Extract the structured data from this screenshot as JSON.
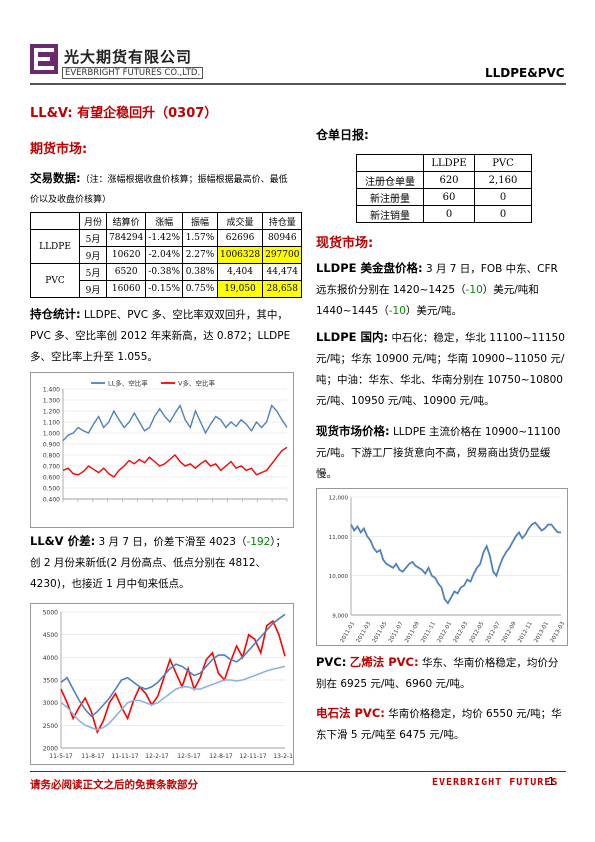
{
  "header": {
    "company_cn": "光大期货有限公司",
    "company_en": "EVERBRIGHT FUTURES CO.,LTD.",
    "doc_tag": "LLDPE&PVC"
  },
  "title": "LL&V: 有望企稳回升（0307）",
  "futures": {
    "heading": "期货市场:",
    "trade_label": "交易数据:",
    "trade_note": "（注：涨幅根据收盘价核算；振幅根据最高价、最低价以及收盘价核算）",
    "table": {
      "headers": [
        "",
        "月份",
        "结算价",
        "涨幅",
        "振幅",
        "成交量",
        "持仓量"
      ],
      "groups": [
        {
          "name": "LLDPE",
          "rows": [
            [
              "5月",
              "784294",
              "-1.42%",
              "1.57%",
              "62696",
              "80946"
            ],
            [
              "9月",
              "10620",
              "-2.04%",
              "2.27%",
              "1006328",
              "297700"
            ]
          ]
        },
        {
          "name": "PVC",
          "rows": [
            [
              "5月",
              "6520",
              "-0.38%",
              "0.38%",
              "4,404",
              "44,474"
            ],
            [
              "9月",
              "16060",
              "-0.15%",
              "0.75%",
              "19,050",
              "28,658"
            ]
          ]
        }
      ]
    },
    "holding_label": "持仓统计:",
    "holding_text": "LLDPE、PVC 多、空比率双双回升，其中，PVC 多、空比率创 2012 年来新高，达 0.872；LLDPE 多、空比率上升至 1.055。",
    "spread_label": "LL&V 价差:",
    "spread_text_a": "3 月 7 日，价差下滑至 4023（",
    "spread_change": "-192",
    "spread_text_b": "）；创 2 月份来新低(2 月份高点、低点分别在 4812、4230)，也接近 1 月中旬来低点。"
  },
  "warehouse": {
    "heading": "仓单日报:",
    "headers": [
      "",
      "LLDPE",
      "PVC"
    ],
    "rows": [
      [
        "注册仓单量",
        "620",
        "2,160"
      ],
      [
        "新注册量",
        "60",
        "0"
      ],
      [
        "新注销量",
        "0",
        "0"
      ]
    ]
  },
  "spot": {
    "heading": "现货市场:",
    "p1_label": "LLDPE 美金盘价格:",
    "p1_a": "3 月 7 日，FOB 中东、CFR 远东报价分别在 1420~1425（",
    "p1_c1": "-10",
    "p1_b": "）美元/吨和 1440~1445（",
    "p1_c2": "-10",
    "p1_c": "）美元/吨。",
    "p2_label": "LLDPE 国内:",
    "p2_text": "中石化：稳定，华北 11100~11150 元/吨；华东 10900 元/吨；华南 10900~11050 元/吨；中油：华东、华北、华南分别在 10750~10800 元/吨、10950 元/吨、10900 元/吨。",
    "p3_label": "现货市场价格:",
    "p3_text": "LLDPE 主流价格在 10900~11100 元/吨。下游工厂接货意向不高，贸易商出货仍显缓慢。",
    "p4_label": "PVC:",
    "p4_sub": "乙烯法 PVC:",
    "p4_text": "华东、华南价格稳定，均价分别在 6925 元/吨、6960 元/吨。",
    "p5_label": "电石法 PVC:",
    "p5_text": "华南价格稳定，均价 6550 元/吨；华东下滑 5 元/吨至 6475 元/吨。"
  },
  "footer": {
    "disclaimer": "请务必阅读正文之后的免责条款部分",
    "brand": "EVERBRIGHT FUTURES",
    "page": "1"
  },
  "colors": {
    "accent": "#c00000",
    "highlight": "#ffff00",
    "series_blue": "#4f81bd",
    "series_light_blue": "#8db3e2",
    "series_red": "#ff0000"
  },
  "chart_data": [
    {
      "type": "line",
      "ylim": [
        0.4,
        1.4
      ],
      "yticks": [
        "1.400",
        "1.300",
        "1.200",
        "1.100",
        "1.000",
        "0.900",
        "0.800",
        "0.700",
        "0.600",
        "0.500",
        "0.400"
      ],
      "legend": [
        "LL多、空比率",
        "V多、空比率"
      ],
      "series": [
        {
          "name": "LL多、空比率",
          "color": "#4f81bd",
          "values": [
            0.93,
            0.98,
            1.0,
            1.05,
            1.02,
            1.0,
            1.08,
            1.15,
            1.05,
            1.1,
            1.2,
            1.12,
            1.05,
            1.1,
            1.18,
            1.1,
            1.02,
            1.05,
            1.15,
            1.22,
            1.15,
            1.1,
            1.18,
            1.25,
            1.12,
            1.05,
            1.2,
            1.1,
            1.0,
            1.08,
            1.15,
            1.12,
            1.05,
            1.1,
            1.06,
            1.12,
            1.08,
            1.02,
            1.1,
            1.05,
            1.1,
            1.25,
            1.2,
            1.12,
            1.05
          ]
        },
        {
          "name": "V多、空比率",
          "color": "#ff0000",
          "values": [
            0.66,
            0.68,
            0.63,
            0.62,
            0.65,
            0.7,
            0.67,
            0.64,
            0.68,
            0.63,
            0.6,
            0.66,
            0.7,
            0.75,
            0.72,
            0.76,
            0.73,
            0.78,
            0.74,
            0.7,
            0.72,
            0.76,
            0.8,
            0.74,
            0.7,
            0.72,
            0.68,
            0.72,
            0.75,
            0.7,
            0.72,
            0.66,
            0.7,
            0.74,
            0.68,
            0.7,
            0.66,
            0.68,
            0.62,
            0.64,
            0.66,
            0.72,
            0.78,
            0.84,
            0.87
          ]
        }
      ]
    },
    {
      "type": "line",
      "ylim": [
        2000,
        5000
      ],
      "yticks": [
        "5000",
        "4500",
        "4000",
        "3500",
        "3000",
        "2500",
        "2000"
      ],
      "xticks": [
        "11-5-17",
        "11-8-17",
        "11-11-17",
        "12-2-17",
        "12-5-17",
        "12-8-17",
        "12-11-17",
        "13-2-17"
      ],
      "series": [
        {
          "name": "",
          "color": "#ff0000",
          "values": [
            3300,
            3000,
            2650,
            2900,
            3100,
            2800,
            2350,
            2600,
            3000,
            3200,
            2900,
            2650,
            3050,
            3350,
            3200,
            2950,
            3150,
            3550,
            3950,
            3650,
            3350,
            3750,
            3300,
            3550,
            3950,
            4100,
            3650,
            3500,
            3900,
            4250,
            4000,
            4500,
            4400,
            4100,
            4700,
            4800,
            4500,
            4023
          ]
        },
        {
          "name": "",
          "color": "#4f81bd",
          "values": [
            3450,
            3550,
            3300,
            3050,
            2850,
            2700,
            2800,
            2950,
            3100,
            3300,
            3500,
            3550,
            3450,
            3350,
            3300,
            3350,
            3450,
            3600,
            3750,
            3850,
            3800,
            3700,
            3600,
            3650,
            3800,
            3950,
            4050,
            4050,
            3950,
            3900,
            4000,
            4150,
            4300,
            4450,
            4600,
            4750,
            4850,
            4950
          ]
        },
        {
          "name": "",
          "color": "#8db3e2",
          "values": [
            3000,
            2900,
            2750,
            2600,
            2500,
            2450,
            2400,
            2450,
            2550,
            2700,
            2850,
            3000,
            3050,
            3050,
            3000,
            2950,
            3000,
            3100,
            3200,
            3300,
            3350,
            3350,
            3300,
            3300,
            3350,
            3400,
            3450,
            3500,
            3500,
            3480,
            3500,
            3550,
            3600,
            3650,
            3700,
            3740,
            3770,
            3800
          ]
        }
      ]
    },
    {
      "type": "line",
      "ylim": [
        9000,
        12000
      ],
      "yticks": [
        "12,000",
        "11,000",
        "10,000",
        "9,000"
      ],
      "xticks": [
        "2011-01",
        "2011-03",
        "2011-05",
        "2011-07",
        "2011-09",
        "2011-11",
        "2012-01",
        "2012-03",
        "2012-05",
        "2012-07",
        "2012-09",
        "2012-11",
        "2013-01",
        "2013-03"
      ],
      "series": [
        {
          "name": "",
          "color": "#4f81bd",
          "values": [
            11300,
            11150,
            11250,
            11100,
            11200,
            11000,
            10900,
            10700,
            10600,
            10650,
            10400,
            10300,
            10250,
            10200,
            10300,
            10150,
            10100,
            10200,
            10300,
            10350,
            10250,
            10200,
            10150,
            10050,
            10200,
            10000,
            9950,
            9800,
            9700,
            9400,
            9300,
            9450,
            9600,
            9550,
            9700,
            9750,
            9900,
            9850,
            10050,
            10200,
            10300,
            10600,
            10750,
            10500,
            10100,
            10000,
            10250,
            10450,
            10600,
            10700,
            10850,
            11000,
            11100,
            10950,
            11050,
            11200,
            11300,
            11350,
            11250,
            11150,
            11200,
            11300,
            11300,
            11200,
            11100,
            11100
          ]
        }
      ]
    }
  ]
}
